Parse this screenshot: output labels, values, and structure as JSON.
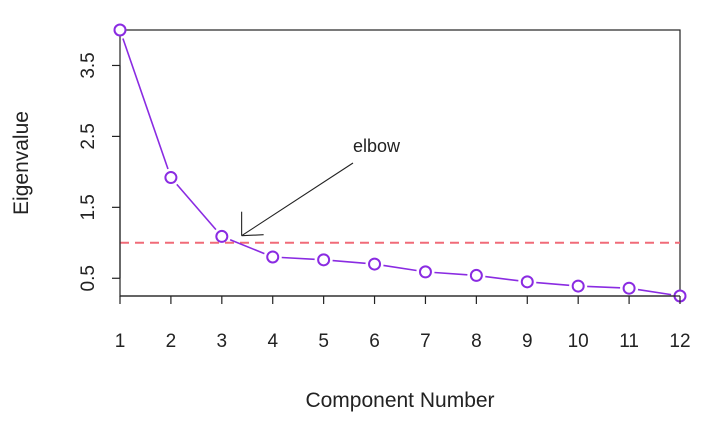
{
  "chart_data": {
    "type": "line",
    "title": "",
    "xlabel": "Component Number",
    "ylabel": "Eigenvalue",
    "x": [
      1,
      2,
      3,
      4,
      5,
      6,
      7,
      8,
      9,
      10,
      11,
      12
    ],
    "series": [
      {
        "values": [
          4.0,
          1.92,
          1.09,
          0.8,
          0.76,
          0.7,
          0.59,
          0.54,
          0.45,
          0.39,
          0.36,
          0.25
        ],
        "color": "#8a2be2",
        "marker": "open-circle"
      }
    ],
    "reference_line": {
      "y": 1.0,
      "color": "#f06b78",
      "style": "dashed"
    },
    "x_ticks": [
      "1",
      "2",
      "3",
      "4",
      "5",
      "6",
      "7",
      "8",
      "9",
      "10",
      "11",
      "12"
    ],
    "y_ticks": [
      {
        "value": 0.5,
        "label": "0.5"
      },
      {
        "value": 1.5,
        "label": "1.5"
      },
      {
        "value": 2.5,
        "label": "2.5"
      },
      {
        "value": 3.5,
        "label": "3.5"
      }
    ],
    "xlim": [
      1,
      12
    ],
    "ylim": [
      0.25,
      4.0
    ],
    "grid": false,
    "annotation": {
      "text": "elbow",
      "points_to": {
        "x": 3.35,
        "y": 1.1
      }
    }
  }
}
